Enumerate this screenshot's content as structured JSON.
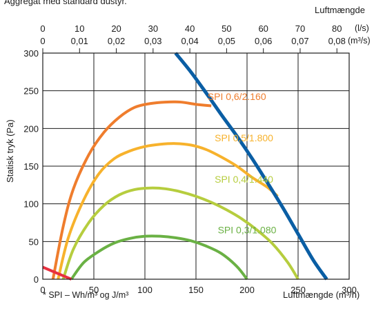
{
  "header_text": "Aggregat med standard dustyr.",
  "footnote": "* SPI – Wh/m³ og J/m³",
  "chart_data": {
    "type": "line",
    "xlabel": "Luftmængde (m³/h)",
    "ylabel": "Statisk tryk (Pa)",
    "xlim": [
      0,
      300
    ],
    "ylim": [
      0,
      300
    ],
    "x_ticks": [
      "0",
      "50",
      "100",
      "150",
      "200",
      "250",
      "300"
    ],
    "y_ticks": [
      "0",
      "50",
      "100",
      "150",
      "200",
      "250",
      "300"
    ],
    "grid": true,
    "top_axis": {
      "title": "Luftmængde",
      "ls_unit": "(l/s)",
      "m3s_unit": "(m³/s)",
      "ls_ticks": [
        "0",
        "10",
        "20",
        "30",
        "40",
        "50",
        "60",
        "70",
        "80"
      ],
      "m3s_ticks": [
        "0",
        "0,01",
        "0,02",
        "0,03",
        "0,04",
        "0,05",
        "0,06",
        "0,07",
        "0,08"
      ]
    },
    "series": [
      {
        "name": "SPI 0,6/2.160",
        "color": "#ef7d2d",
        "x": [
          10,
          20,
          30,
          45,
          60,
          75,
          90,
          105,
          120,
          135,
          150,
          165
        ],
        "y": [
          0,
          70,
          120,
          165,
          195,
          215,
          228,
          233,
          235,
          235,
          232,
          230
        ]
      },
      {
        "name": "SPI 0,5/1.800",
        "color": "#f7b22c",
        "x": [
          15,
          25,
          40,
          55,
          70,
          85,
          100,
          115,
          130,
          145,
          160,
          175,
          190,
          205,
          220,
          230
        ],
        "y": [
          0,
          55,
          105,
          140,
          160,
          170,
          176,
          179,
          180,
          178,
          172,
          162,
          150,
          135,
          122,
          110
        ]
      },
      {
        "name": "SPI 0,4/1.440",
        "color": "#b6cd3e",
        "x": [
          20,
          30,
          45,
          60,
          75,
          90,
          105,
          120,
          135,
          150,
          165,
          180,
          195,
          210,
          225,
          240,
          250
        ],
        "y": [
          0,
          40,
          75,
          98,
          112,
          119,
          121,
          120,
          116,
          110,
          102,
          92,
          80,
          65,
          47,
          22,
          0
        ]
      },
      {
        "name": "SPI 0,3/1.080",
        "color": "#6ab144",
        "x": [
          28,
          40,
          55,
          70,
          85,
          100,
          115,
          130,
          145,
          160,
          175,
          190,
          200
        ],
        "y": [
          0,
          22,
          37,
          48,
          54,
          57,
          57,
          55,
          51,
          44,
          34,
          17,
          0
        ]
      },
      {
        "name": "",
        "color": "#0a5ea4",
        "x": [
          130,
          145,
          160,
          175,
          190,
          205,
          220,
          235,
          250,
          265,
          278
        ],
        "y": [
          300,
          275,
          247,
          218,
          190,
          160,
          128,
          95,
          60,
          25,
          0
        ]
      },
      {
        "name": "",
        "color": "#e8303f",
        "x": [
          0,
          28
        ],
        "y": [
          16,
          0
        ]
      }
    ]
  }
}
